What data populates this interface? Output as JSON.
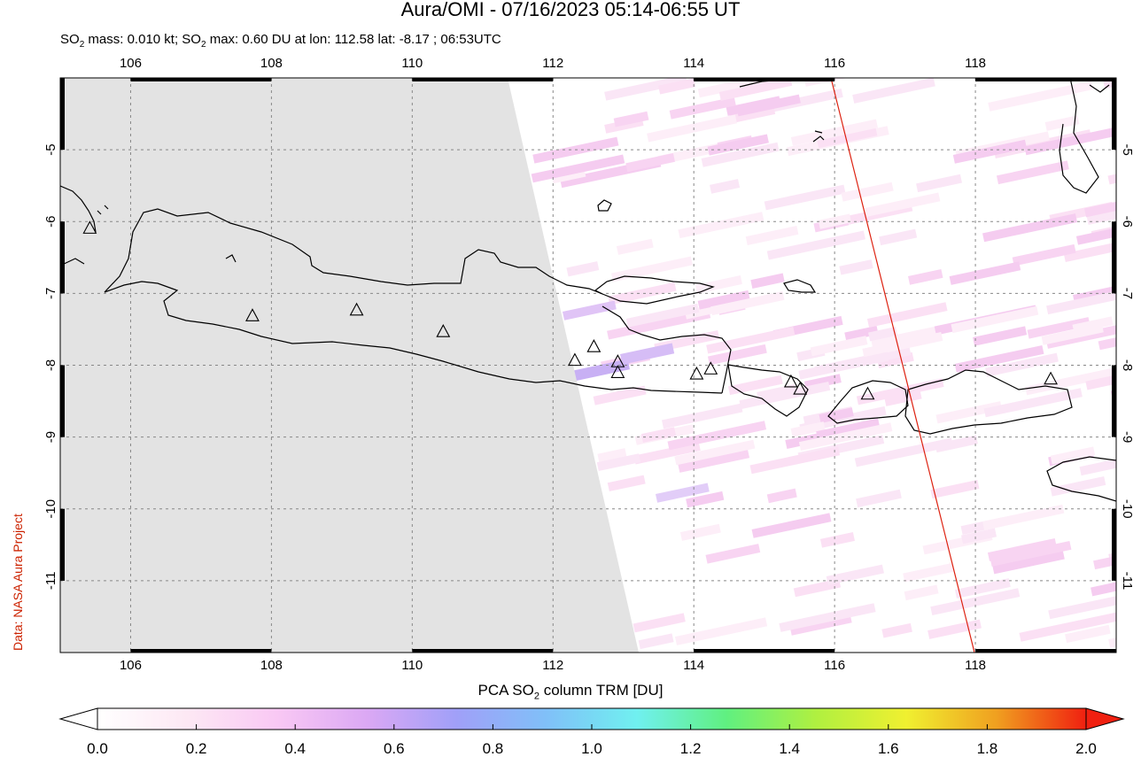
{
  "title": "Aura/OMI - 07/16/2023 05:14-06:55 UT",
  "subtitle": {
    "prefix": "SO",
    "sub1": "2",
    "mid": " mass: 0.010 kt; SO",
    "sub2": "2",
    "rest": " max: 0.60 DU at lon: 112.58 lat: -8.17 ; 06:53UTC"
  },
  "credit": "Data: NASA Aura Project",
  "colorbar": {
    "title_pre": "PCA SO",
    "title_sub": "2",
    "title_post": " column TRM [DU]",
    "min": 0.0,
    "max": 2.0,
    "ticks": [
      "0.0",
      "0.2",
      "0.4",
      "0.6",
      "0.8",
      "1.0",
      "1.2",
      "1.4",
      "1.6",
      "1.8",
      "2.0"
    ],
    "colors": [
      "#ffffff",
      "#fde8f4",
      "#f9c8f4",
      "#dba8f4",
      "#a0a0f8",
      "#80c0f8",
      "#70f0f0",
      "#60f080",
      "#b0f040",
      "#f0f030",
      "#f0a020",
      "#f02010"
    ]
  },
  "map": {
    "lon_range": [
      105,
      120
    ],
    "lat_range": [
      -12,
      -4
    ],
    "lon_ticks": [
      "106",
      "108",
      "110",
      "112",
      "114",
      "116",
      "118"
    ],
    "lat_ticks": [
      "-5",
      "-6",
      "-7",
      "-8",
      "-9",
      "-10",
      "-11"
    ],
    "no_data_color": "#e3e3e3",
    "swath_edge_color": "#dd2211",
    "volcanoes": [
      {
        "lon": 105.42,
        "lat": -6.1
      },
      {
        "lon": 107.73,
        "lat": -7.32
      },
      {
        "lon": 109.21,
        "lat": -7.24
      },
      {
        "lon": 110.44,
        "lat": -7.54
      },
      {
        "lon": 112.31,
        "lat": -7.94
      },
      {
        "lon": 112.58,
        "lat": -7.75
      },
      {
        "lon": 112.92,
        "lat": -7.96
      },
      {
        "lon": 112.92,
        "lat": -8.11
      },
      {
        "lon": 114.04,
        "lat": -8.13
      },
      {
        "lon": 114.24,
        "lat": -8.06
      },
      {
        "lon": 115.38,
        "lat": -8.24
      },
      {
        "lon": 115.51,
        "lat": -8.34
      },
      {
        "lon": 116.47,
        "lat": -8.41
      },
      {
        "lon": 119.07,
        "lat": -8.2
      }
    ]
  }
}
